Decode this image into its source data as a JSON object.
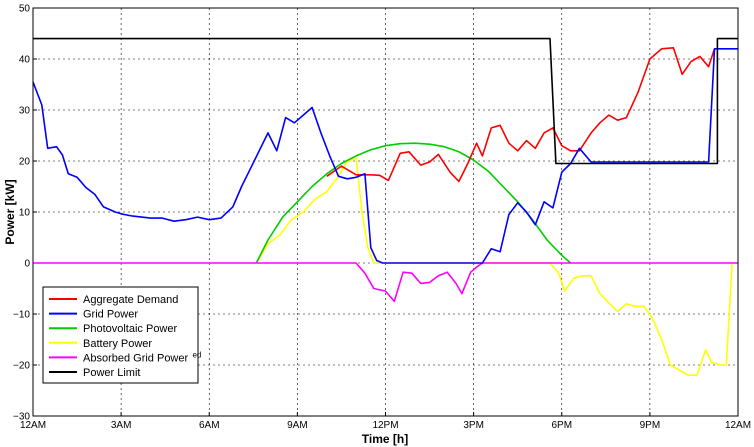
{
  "chart_data": {
    "type": "line",
    "title": "",
    "xlabel": "Time [h]",
    "ylabel": "Power [kW]",
    "xlim": [
      0,
      24
    ],
    "ylim": [
      -30,
      50
    ],
    "grid": true,
    "legend_position": "bottom-left",
    "x_ticks": [
      {
        "value": 0,
        "label": "12AM"
      },
      {
        "value": 3,
        "label": "3AM"
      },
      {
        "value": 6,
        "label": "6AM"
      },
      {
        "value": 9,
        "label": "9AM"
      },
      {
        "value": 12,
        "label": "12PM"
      },
      {
        "value": 15,
        "label": "3PM"
      },
      {
        "value": 18,
        "label": "6PM"
      },
      {
        "value": 21,
        "label": "9PM"
      },
      {
        "value": 24,
        "label": "12AM"
      }
    ],
    "y_ticks": [
      {
        "value": -30,
        "label": "−30"
      },
      {
        "value": -20,
        "label": "−20"
      },
      {
        "value": -10,
        "label": "−10"
      },
      {
        "value": 0,
        "label": "0"
      },
      {
        "value": 10,
        "label": "10"
      },
      {
        "value": 20,
        "label": "20"
      },
      {
        "value": 30,
        "label": "30"
      },
      {
        "value": 40,
        "label": "40"
      },
      {
        "value": 50,
        "label": "50"
      }
    ],
    "series": [
      {
        "name": "Aggregate Demand",
        "color": "#ff0000",
        "x": [
          10.0,
          10.5,
          11.0,
          11.5,
          11.8,
          12.1,
          12.5,
          12.8,
          13.2,
          13.5,
          13.8,
          14.2,
          14.5,
          14.8,
          15.1,
          15.3,
          15.6,
          15.9,
          16.2,
          16.5,
          16.8,
          17.1,
          17.4,
          17.7,
          18.0,
          18.3,
          18.6,
          19.0,
          19.3,
          19.6,
          19.9,
          20.2,
          20.6,
          21.0,
          21.4,
          21.8,
          22.1,
          22.4,
          22.7,
          23.0,
          23.2
        ],
        "y": [
          17,
          19,
          17.3,
          17.3,
          17.2,
          16.2,
          21.5,
          21.8,
          19.2,
          19.8,
          21.3,
          17.8,
          16,
          19.5,
          23.5,
          21,
          26.5,
          27,
          23.5,
          22,
          24,
          22.5,
          25.5,
          26.5,
          23,
          22,
          22,
          25.5,
          27.5,
          29,
          28,
          28.5,
          33.5,
          40,
          42,
          42.2,
          37,
          39.5,
          40.5,
          38.5,
          42
        ]
      },
      {
        "name": "Grid Power",
        "color": "#0000ff",
        "x": [
          0.0,
          0.3,
          0.5,
          0.8,
          1.0,
          1.2,
          1.5,
          1.8,
          2.1,
          2.4,
          2.8,
          3.1,
          3.4,
          3.7,
          4.0,
          4.4,
          4.8,
          5.2,
          5.6,
          6.0,
          6.4,
          6.8,
          7.1,
          7.4,
          7.7,
          8.0,
          8.3,
          8.6,
          8.9,
          9.2,
          9.5,
          9.8,
          10.1,
          10.4,
          10.7,
          11.0,
          11.3,
          11.5,
          11.7,
          11.9,
          12.1,
          12.5,
          13.0,
          13.5,
          14.0,
          14.5,
          14.8,
          15.0,
          15.3,
          15.6,
          15.9,
          16.2,
          16.5,
          16.8,
          17.1,
          17.4,
          17.7,
          18.0,
          18.3,
          18.6,
          19.0,
          19.5,
          20.0,
          20.5,
          21.0,
          21.5,
          22.0,
          22.5,
          23.0,
          23.2,
          23.5,
          24.0
        ],
        "y": [
          35.5,
          31,
          22.5,
          22.8,
          21.2,
          17.5,
          16.8,
          14.8,
          13.5,
          11,
          10,
          9.5,
          9.2,
          9,
          8.8,
          8.8,
          8.2,
          8.5,
          9,
          8.5,
          8.8,
          11,
          15,
          18.5,
          22,
          25.5,
          22,
          28.5,
          27.5,
          29,
          30.5,
          25.5,
          21,
          17,
          16.5,
          16.8,
          17.5,
          3,
          0.5,
          0,
          0,
          0,
          0,
          0,
          0,
          0,
          0,
          0,
          0,
          2.8,
          2.2,
          9.5,
          11.8,
          10,
          7.5,
          12,
          10.8,
          17.8,
          19.5,
          22.5,
          19.8,
          19.8,
          19.8,
          19.8,
          19.8,
          19.8,
          19.8,
          19.8,
          19.8,
          42,
          42,
          42
        ]
      },
      {
        "name": "Photovoltaic Power",
        "color": "#00cc00",
        "x": [
          7.6,
          8.0,
          8.5,
          9.0,
          9.5,
          10.0,
          10.5,
          11.0,
          11.5,
          12.0,
          12.5,
          13.0,
          13.5,
          14.0,
          14.5,
          15.0,
          15.5,
          16.0,
          16.5,
          17.0,
          17.5,
          18.0,
          18.3
        ],
        "y": [
          0,
          4.5,
          9,
          12,
          15,
          17.5,
          19.5,
          21,
          22.2,
          23,
          23.4,
          23.5,
          23.3,
          22.8,
          21.8,
          20.2,
          18,
          15,
          12,
          8.5,
          4.5,
          1.5,
          0
        ]
      },
      {
        "name": "Battery Power",
        "color": "#ffff00",
        "x": [
          7.4,
          7.6,
          8.0,
          8.4,
          8.8,
          9.2,
          9.6,
          10.0,
          10.4,
          10.7,
          11.0,
          11.2,
          11.4,
          11.6,
          11.8,
          12.0,
          13.0,
          14.0,
          14.5,
          15.0,
          15.5,
          16.0,
          16.5,
          17.0,
          17.3,
          17.6,
          17.9,
          18.1,
          18.4,
          18.7,
          19.0,
          19.3,
          19.6,
          19.9,
          20.2,
          20.5,
          20.8,
          21.1,
          21.4,
          21.7,
          22.0,
          22.3,
          22.6,
          22.9,
          23.1,
          23.4,
          23.6,
          23.8
        ],
        "y": [
          0,
          0,
          3.8,
          5.5,
          8.5,
          10,
          12.5,
          14,
          17,
          20,
          20.5,
          10,
          3,
          0,
          0,
          0,
          0,
          0,
          0,
          0,
          0,
          0,
          0,
          0,
          0,
          0,
          -2,
          -5.5,
          -3,
          -2.5,
          -2.5,
          -6,
          -7.8,
          -9.5,
          -8,
          -8.5,
          -8.5,
          -11,
          -15,
          -20,
          -21,
          -22,
          -22,
          -17,
          -19.5,
          -20,
          -20,
          0
        ]
      },
      {
        "name": "Absorbed Grid Power",
        "color": "#ff00ff",
        "x": [
          0.0,
          11.0,
          11.3,
          11.6,
          12.0,
          12.3,
          12.6,
          12.9,
          13.2,
          13.5,
          13.8,
          14.1,
          14.4,
          14.6,
          14.9,
          15.1,
          15.3,
          24.0
        ],
        "y": [
          0,
          0,
          -2,
          -5,
          -5.5,
          -7.5,
          -1.8,
          -2,
          -4,
          -3.8,
          -2.5,
          -1.8,
          -4,
          -6,
          -1.8,
          -0.8,
          0,
          0
        ]
      },
      {
        "name": "Power Limit",
        "color": "#000000",
        "x": [
          0,
          17.6,
          17.8,
          23.3,
          23.3,
          24
        ],
        "y": [
          44,
          44,
          19.5,
          19.5,
          44,
          44
        ]
      }
    ],
    "legend": [
      {
        "label": "Aggregate Demand",
        "color": "#ff0000"
      },
      {
        "label": "Grid Power",
        "color": "#0000ff"
      },
      {
        "label": "Photovoltaic Power",
        "color": "#00cc00"
      },
      {
        "label": "Battery Power",
        "color": "#ffff00"
      },
      {
        "label": "Absorbed Grid Power",
        "color": "#ff00ff",
        "suffix": "ed"
      },
      {
        "label": "Power Limit",
        "color": "#000000"
      }
    ]
  }
}
